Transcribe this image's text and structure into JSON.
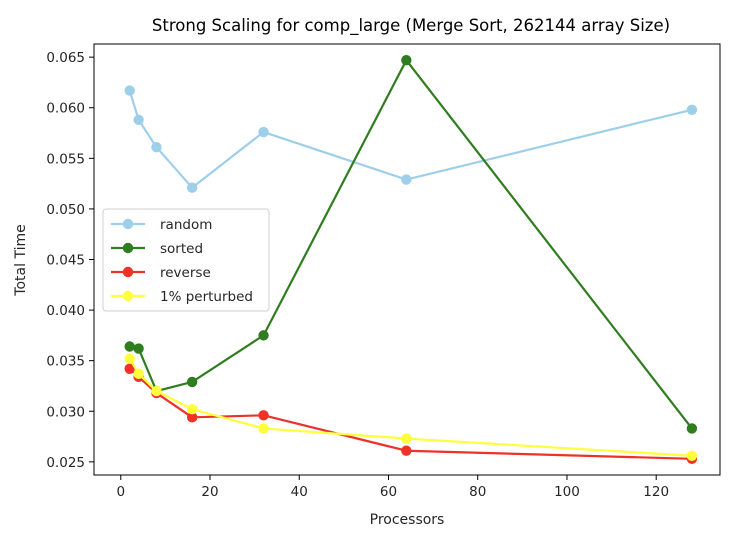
{
  "chart_data": {
    "type": "line",
    "title": "Strong Scaling for comp_large (Merge Sort, 262144 array Size)",
    "xlabel": "Processors",
    "ylabel": "Total Time",
    "xlim": [
      -6,
      134.3
    ],
    "ylim": [
      0.0237,
      0.0663
    ],
    "xticks": [
      0,
      20,
      40,
      60,
      80,
      100,
      120
    ],
    "xtick_labels": [
      "0",
      "20",
      "40",
      "60",
      "80",
      "100",
      "120"
    ],
    "yticks": [
      0.025,
      0.03,
      0.035,
      0.04,
      0.045,
      0.05,
      0.055,
      0.06,
      0.065
    ],
    "ytick_labels": [
      "0.025",
      "0.030",
      "0.035",
      "0.040",
      "0.045",
      "0.050",
      "0.055",
      "0.060",
      "0.065"
    ],
    "grid": false,
    "legend_position": "center-left",
    "x": [
      2,
      4,
      8,
      16,
      32,
      64,
      128
    ],
    "series": [
      {
        "name": "random",
        "color": "#9ecfea",
        "values": [
          0.0617,
          0.0588,
          0.0561,
          0.0521,
          0.0576,
          0.0529,
          0.0598
        ]
      },
      {
        "name": "sorted",
        "color": "#2f7d1f",
        "values": [
          0.0364,
          0.0362,
          0.032,
          0.0329,
          0.0375,
          0.0647,
          0.0283
        ]
      },
      {
        "name": "reverse",
        "color": "#ee3228",
        "values": [
          0.0342,
          0.0334,
          0.0318,
          0.0294,
          0.0296,
          0.0261,
          0.0253
        ]
      },
      {
        "name": "1% perturbed",
        "color": "#ffff3c",
        "values": [
          0.0352,
          0.0337,
          0.032,
          0.0302,
          0.0283,
          0.0273,
          0.0256
        ]
      }
    ]
  }
}
